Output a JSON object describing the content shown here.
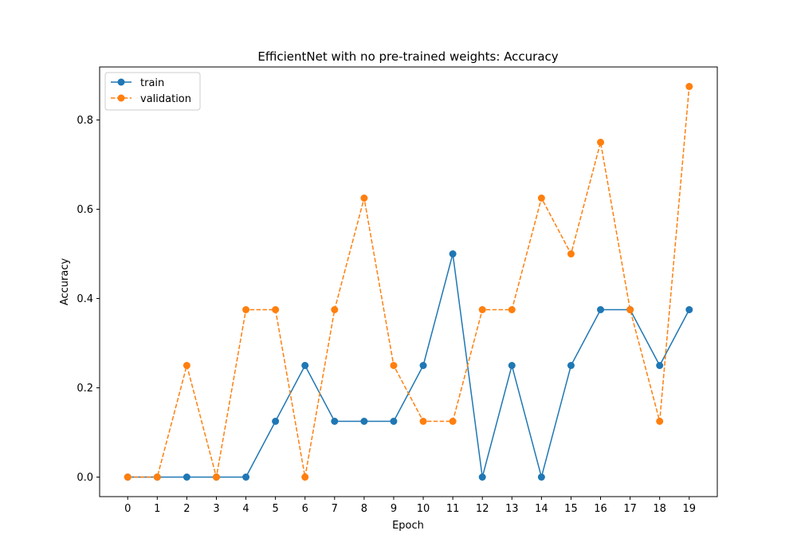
{
  "chart_data": {
    "type": "line",
    "title": "EfficientNet with no pre-trained weights: Accuracy",
    "xlabel": "Epoch",
    "ylabel": "Accuracy",
    "x": [
      0,
      1,
      2,
      3,
      4,
      5,
      6,
      7,
      8,
      9,
      10,
      11,
      12,
      13,
      14,
      15,
      16,
      17,
      18,
      19
    ],
    "x_tick_labels": [
      "0",
      "1",
      "2",
      "3",
      "4",
      "5",
      "6",
      "7",
      "8",
      "9",
      "10",
      "11",
      "12",
      "13",
      "14",
      "15",
      "16",
      "17",
      "18",
      "19"
    ],
    "y_ticks": [
      0.0,
      0.2,
      0.4,
      0.6,
      0.8
    ],
    "y_tick_labels": [
      "0.0",
      "0.2",
      "0.4",
      "0.6",
      "0.8"
    ],
    "xlim": [
      -0.95,
      19.95
    ],
    "ylim": [
      -0.04375,
      0.91875
    ],
    "grid": false,
    "legend_position": "top-left",
    "series": [
      {
        "name": "train",
        "color": "#1f77b4",
        "line_style": "solid",
        "marker": "circle",
        "values": [
          0.0,
          0.0,
          0.0,
          0.0,
          0.0,
          0.125,
          0.25,
          0.125,
          0.125,
          0.125,
          0.25,
          0.5,
          0.0,
          0.25,
          0.0,
          0.25,
          0.375,
          0.375,
          0.25,
          0.375
        ]
      },
      {
        "name": "validation",
        "color": "#ff7f0e",
        "line_style": "dashed",
        "marker": "circle",
        "values": [
          0.0,
          0.0,
          0.25,
          0.0,
          0.375,
          0.375,
          0.0,
          0.375,
          0.625,
          0.25,
          0.125,
          0.125,
          0.375,
          0.375,
          0.625,
          0.5,
          0.75,
          0.375,
          0.125,
          0.875
        ]
      }
    ]
  }
}
